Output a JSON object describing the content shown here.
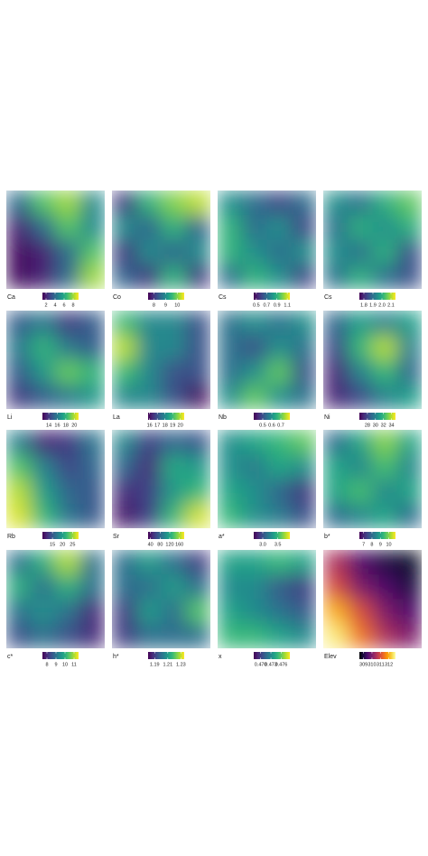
{
  "chart_data": [
    {
      "type": "heatmap",
      "label": "Ca",
      "colormap": "viridis",
      "clim": [
        1.2,
        9.2
      ],
      "ticks": [
        2,
        4,
        6,
        8
      ],
      "values": [
        [
          4,
          7,
          8,
          5
        ],
        [
          2,
          4,
          7,
          5
        ],
        [
          1.5,
          2,
          4,
          7
        ],
        [
          1.5,
          2,
          4,
          8
        ]
      ]
    },
    {
      "type": "heatmap",
      "label": "Co",
      "colormap": "viridis",
      "clim": [
        7.5,
        10.6
      ],
      "ticks": [
        8,
        9,
        10
      ],
      "values": [
        [
          8,
          9.5,
          10,
          10.3
        ],
        [
          9,
          8.5,
          9.5,
          8.5
        ],
        [
          8,
          9,
          8.5,
          9
        ],
        [
          8.5,
          8,
          9.5,
          8
        ]
      ]
    },
    {
      "type": "heatmap",
      "label": "Cs",
      "colormap": "viridis",
      "clim": [
        0.45,
        1.15
      ],
      "ticks": [
        0.5,
        0.7,
        0.9,
        1.1
      ],
      "values": [
        [
          0.8,
          0.7,
          0.6,
          0.7
        ],
        [
          0.9,
          0.7,
          0.8,
          0.6
        ],
        [
          0.9,
          0.8,
          0.7,
          0.8
        ],
        [
          0.7,
          0.9,
          0.8,
          0.6
        ]
      ]
    },
    {
      "type": "heatmap",
      "label": "Cs",
      "colormap": "viridis",
      "clim": [
        1.75,
        2.15
      ],
      "ticks": [
        1.8,
        1.9,
        {
          "value": 2,
          "label": "2.0"
        },
        2.1
      ],
      "values": [
        [
          1.95,
          1.9,
          2.0,
          2.05
        ],
        [
          1.9,
          2.0,
          1.95,
          2.0
        ],
        [
          1.95,
          1.9,
          2.0,
          1.85
        ],
        [
          1.9,
          2.0,
          1.9,
          1.85
        ]
      ]
    },
    {
      "type": "heatmap",
      "label": "Li",
      "colormap": "viridis",
      "clim": [
        12.5,
        21
      ],
      "ticks": [
        14,
        16,
        18,
        20
      ],
      "values": [
        [
          15,
          16,
          14,
          15
        ],
        [
          16,
          18,
          16,
          15
        ],
        [
          15,
          17,
          19,
          18
        ],
        [
          14,
          15,
          16,
          17
        ]
      ]
    },
    {
      "type": "heatmap",
      "label": "La",
      "colormap": "viridis",
      "clim": [
        15.8,
        20.5
      ],
      "ticks": [
        16,
        17,
        18,
        19,
        20
      ],
      "values": [
        [
          19,
          18,
          18,
          17
        ],
        [
          20,
          18,
          18,
          17
        ],
        [
          19,
          18,
          17,
          17
        ],
        [
          18,
          18,
          17,
          16
        ]
      ]
    },
    {
      "type": "heatmap",
      "label": "Nb",
      "colormap": "viridis",
      "clim": [
        0.4,
        0.8
      ],
      "ticks": [
        0.5,
        0.6,
        0.7
      ],
      "values": [
        [
          0.55,
          0.6,
          0.55,
          0.6
        ],
        [
          0.55,
          0.5,
          0.6,
          0.55
        ],
        [
          0.55,
          0.6,
          0.7,
          0.5
        ],
        [
          0.6,
          0.7,
          0.6,
          0.55
        ]
      ]
    },
    {
      "type": "heatmap",
      "label": "Ni",
      "colormap": "viridis",
      "clim": [
        26,
        35
      ],
      "ticks": [
        28,
        30,
        32,
        34
      ],
      "values": [
        [
          29,
          31,
          30,
          31
        ],
        [
          28,
          32,
          34,
          30
        ],
        [
          27,
          30,
          32,
          29
        ],
        [
          27,
          28,
          30,
          31
        ]
      ]
    },
    {
      "type": "heatmap",
      "label": "Rb",
      "colormap": "viridis",
      "clim": [
        10,
        28
      ],
      "ticks": [
        15,
        20,
        25
      ],
      "values": [
        [
          18,
          12,
          13,
          17
        ],
        [
          23,
          18,
          14,
          16
        ],
        [
          26,
          20,
          16,
          15
        ],
        [
          27,
          22,
          17,
          15
        ]
      ]
    },
    {
      "type": "heatmap",
      "label": "Sr",
      "colormap": "viridis",
      "clim": [
        30,
        180
      ],
      "ticks": [
        40,
        80,
        120,
        160
      ],
      "values": [
        [
          100,
          60,
          80,
          70
        ],
        [
          80,
          50,
          120,
          110
        ],
        [
          50,
          60,
          110,
          130
        ],
        [
          40,
          60,
          130,
          170
        ]
      ]
    },
    {
      "type": "heatmap",
      "label": "a*",
      "colormap": "viridis",
      "clim": [
        2.7,
        3.9
      ],
      "ticks": [
        {
          "value": 3,
          "label": "3.0"
        },
        3.5
      ],
      "values": [
        [
          3.3,
          3.4,
          3.5,
          3.6
        ],
        [
          3.3,
          3.2,
          3.4,
          3.3
        ],
        [
          3.4,
          3.3,
          3.1,
          2.9
        ],
        [
          3.5,
          3.3,
          3.2,
          3.0
        ]
      ]
    },
    {
      "type": "heatmap",
      "label": "b*",
      "colormap": "viridis",
      "clim": [
        6.5,
        10.8
      ],
      "ticks": [
        7,
        8,
        9,
        10
      ],
      "values": [
        [
          8,
          9,
          10,
          9
        ],
        [
          9,
          8.5,
          9.5,
          8.5
        ],
        [
          9,
          9.5,
          8.5,
          9
        ],
        [
          8,
          8.5,
          9,
          8
        ]
      ]
    },
    {
      "type": "heatmap",
      "label": "c*",
      "colormap": "viridis",
      "clim": [
        7.5,
        11.5
      ],
      "ticks": [
        8,
        9,
        10,
        11
      ],
      "values": [
        [
          9,
          10,
          11,
          9
        ],
        [
          10,
          9,
          10,
          9
        ],
        [
          9,
          9.5,
          9,
          8
        ],
        [
          8.5,
          9,
          8.5,
          8
        ]
      ]
    },
    {
      "type": "heatmap",
      "label": "h*",
      "colormap": "viridis",
      "clim": [
        1.18,
        1.235
      ],
      "ticks": [
        1.19,
        1.21,
        1.23
      ],
      "values": [
        [
          1.2,
          1.21,
          1.2,
          1.19
        ],
        [
          1.2,
          1.2,
          1.21,
          1.2
        ],
        [
          1.19,
          1.21,
          1.2,
          1.22
        ],
        [
          1.19,
          1.2,
          1.2,
          1.2
        ]
      ]
    },
    {
      "type": "heatmap",
      "label": "x",
      "colormap": "viridis",
      "clim": [
        0.468,
        0.4785
      ],
      "ticks": [
        {
          "value": 0.47,
          "label": "0.470"
        },
        0.473,
        0.476
      ],
      "values": [
        [
          0.474,
          0.474,
          0.475,
          0.474
        ],
        [
          0.473,
          0.473,
          0.471,
          0.47
        ],
        [
          0.474,
          0.473,
          0.472,
          0.471
        ],
        [
          0.475,
          0.475,
          0.474,
          0.473
        ]
      ]
    },
    {
      "type": "heatmap",
      "label": "Elev",
      "colormap": "inferno",
      "clim": [
        308.5,
        312.8
      ],
      "ticks": [
        309,
        310,
        311,
        312
      ],
      "values": [
        [
          310.5,
          309.5,
          309,
          308.8
        ],
        [
          311,
          310,
          309.5,
          309
        ],
        [
          312,
          311,
          310,
          309.5
        ],
        [
          312.6,
          311.5,
          310.5,
          310
        ]
      ]
    }
  ]
}
